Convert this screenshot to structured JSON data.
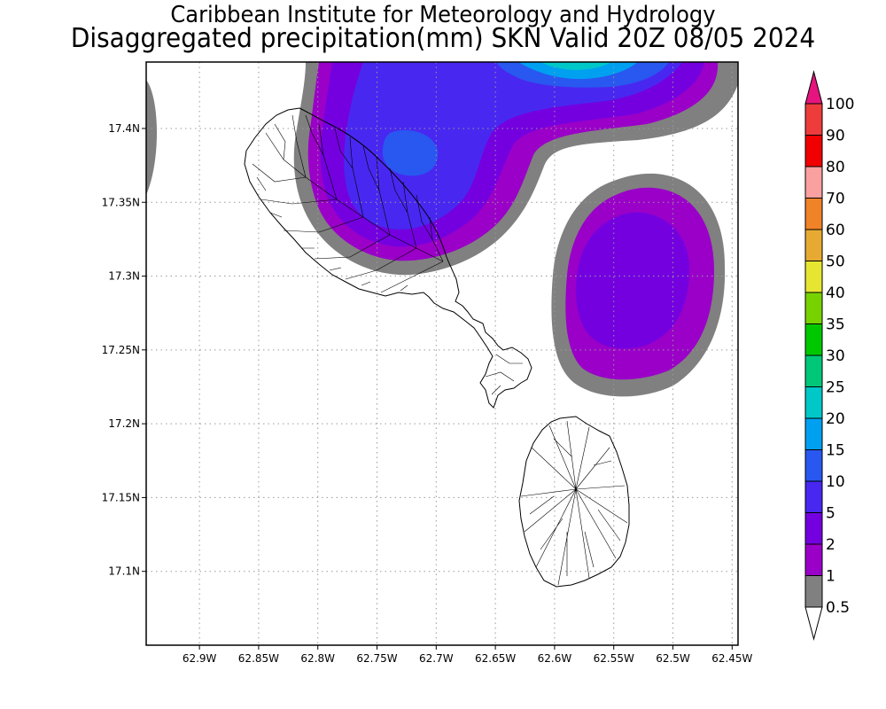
{
  "title": {
    "line1": "Caribbean Institute for Meteorology and Hydrology",
    "line2": "Disaggregated precipitation(mm) SKN Valid 20Z 08/05 2024"
  },
  "map": {
    "lon_range": [
      -62.945,
      -62.445
    ],
    "lat_range": [
      17.05,
      17.445
    ],
    "lon_ticks": [
      {
        "value": -62.9,
        "label": "62.9W"
      },
      {
        "value": -62.85,
        "label": "62.85W"
      },
      {
        "value": -62.8,
        "label": "62.8W"
      },
      {
        "value": -62.75,
        "label": "62.75W"
      },
      {
        "value": -62.7,
        "label": "62.7W"
      },
      {
        "value": -62.65,
        "label": "62.65W"
      },
      {
        "value": -62.6,
        "label": "62.6W"
      },
      {
        "value": -62.55,
        "label": "62.55W"
      },
      {
        "value": -62.5,
        "label": "62.5W"
      },
      {
        "value": -62.45,
        "label": "62.45W"
      }
    ],
    "lat_ticks": [
      {
        "value": 17.4,
        "label": "17.4N"
      },
      {
        "value": 17.35,
        "label": "17.35N"
      },
      {
        "value": 17.3,
        "label": "17.3N"
      },
      {
        "value": 17.25,
        "label": "17.25N"
      },
      {
        "value": 17.2,
        "label": "17.2N"
      },
      {
        "value": 17.15,
        "label": "17.15N"
      },
      {
        "value": 17.1,
        "label": "17.1N"
      }
    ],
    "grid": "dotted"
  },
  "legend": {
    "levels": [
      "0.5",
      "1",
      "2",
      "5",
      "10",
      "15",
      "20",
      "25",
      "30",
      "35",
      "40",
      "50",
      "60",
      "70",
      "80",
      "90",
      "100"
    ],
    "colors": [
      "#808080",
      "#9a00c8",
      "#7400e0",
      "#4828f0",
      "#2858f0",
      "#00a0f0",
      "#00c8c8",
      "#00c878",
      "#00c800",
      "#78d200",
      "#e6e632",
      "#e6aa32",
      "#f08228",
      "#faa0a0",
      "#f00000",
      "#ee3c3c"
    ],
    "top_arrow_color": "#e6147e"
  },
  "colors": {
    "gray": "#808080",
    "c1": "#9a00c8",
    "c2": "#7400e0",
    "c5": "#4828f0",
    "c10": "#2858f0",
    "c15": "#00a0f0",
    "c20": "#00c8c8"
  }
}
